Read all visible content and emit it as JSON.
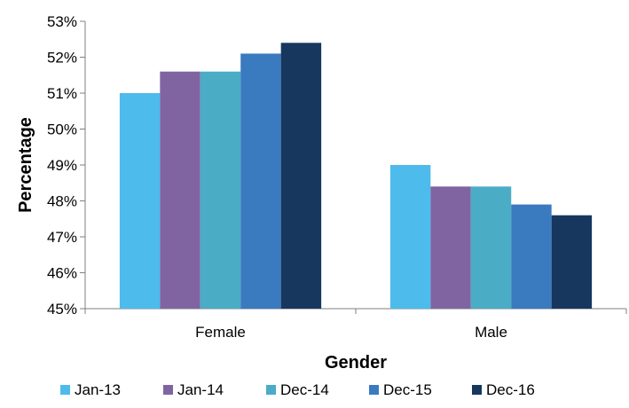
{
  "chart_data": {
    "type": "bar",
    "title": "",
    "xlabel": "Gender",
    "ylabel": "Percentage",
    "categories": [
      "Female",
      "Male"
    ],
    "series": [
      {
        "name": "Jan-13",
        "values": [
          51.0,
          49.0
        ],
        "color": "#4DBBEB"
      },
      {
        "name": "Jan-14",
        "values": [
          51.6,
          48.4
        ],
        "color": "#8064A2"
      },
      {
        "name": "Dec-14",
        "values": [
          51.6,
          48.4
        ],
        "color": "#4BACC6"
      },
      {
        "name": "Dec-15",
        "values": [
          52.1,
          47.9
        ],
        "color": "#3A7ABF"
      },
      {
        "name": "Dec-16",
        "values": [
          52.4,
          47.6
        ],
        "color": "#17375E"
      }
    ],
    "ylim": [
      45,
      53
    ],
    "yticks": [
      "45%",
      "46%",
      "47%",
      "48%",
      "49%",
      "50%",
      "51%",
      "52%",
      "53%"
    ],
    "grid": false,
    "legend_position": "bottom"
  }
}
